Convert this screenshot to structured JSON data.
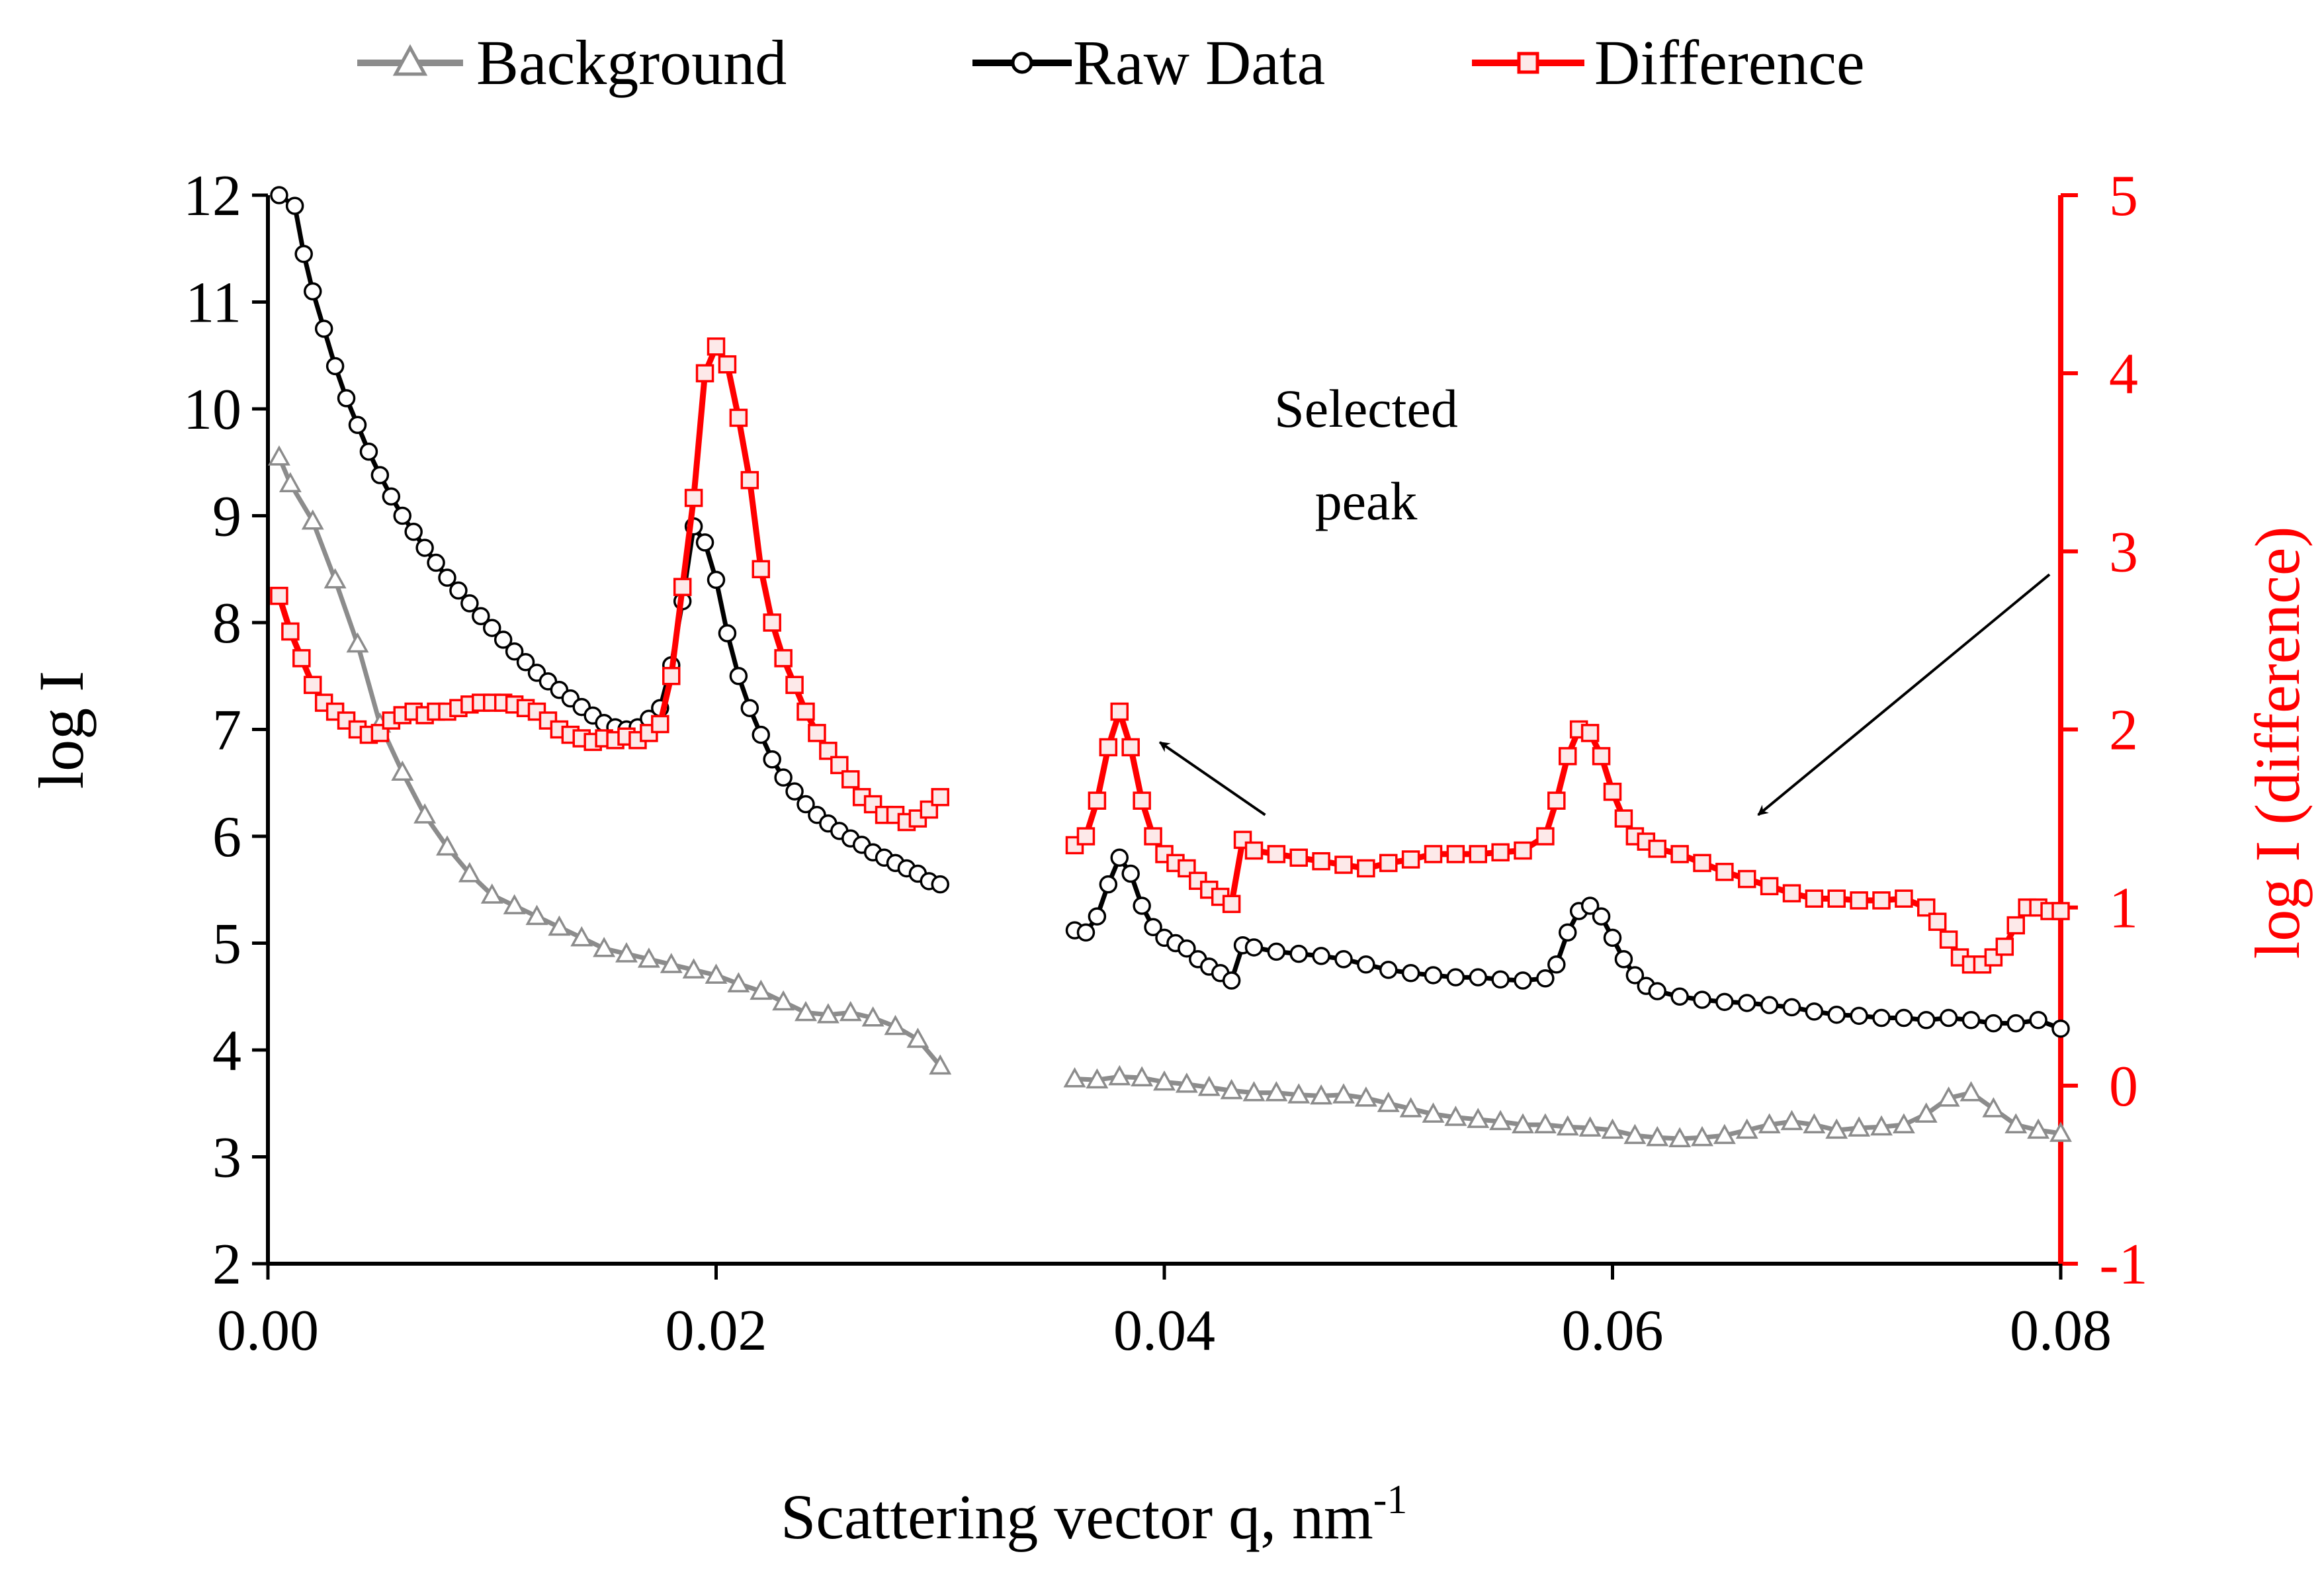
{
  "chart_data": {
    "type": "line",
    "xlabel": "Scattering vector q, nm",
    "xlabel_sup": "-1",
    "ylabel_left": "log I",
    "ylabel_right": "log I (difference)",
    "xlim": [
      0,
      0.08
    ],
    "ylim_left": [
      2,
      12
    ],
    "ylim_right": [
      -1,
      5
    ],
    "x_ticks": [
      0,
      0.02,
      0.04,
      0.06,
      0.08
    ],
    "x_tick_labels": [
      "0.00",
      "0.02",
      "0.04",
      "0.06",
      "0.08"
    ],
    "y_left_ticks": [
      2,
      3,
      4,
      5,
      6,
      7,
      8,
      9,
      10,
      11,
      12
    ],
    "y_left_tick_labels": [
      "2",
      "3",
      "4",
      "5",
      "6",
      "7",
      "8",
      "9",
      "10",
      "11",
      "12"
    ],
    "y_right_ticks": [
      -1,
      0,
      1,
      2,
      3,
      4,
      5
    ],
    "y_right_tick_labels": [
      "-1",
      "0",
      "1",
      "2",
      "3",
      "4",
      "5"
    ],
    "grid": false,
    "legend_position": "top",
    "legend": [
      "Background",
      "Raw Data",
      "Difference"
    ],
    "colors": {
      "background": "#8c8c8c",
      "raw": "#000000",
      "difference": "#ff0000",
      "difference_marker_fill": "#fde9e9",
      "right_axis": "#ff0000"
    },
    "annotation": {
      "lines": [
        "Selected",
        "peak"
      ],
      "arrows": [
        {
          "from": [
            0.0445,
            6.2
          ],
          "to": [
            0.0398,
            6.88
          ]
        },
        {
          "from": [
            0.0795,
            8.45
          ],
          "to": [
            0.0665,
            6.2
          ]
        }
      ]
    },
    "series": [
      {
        "name": "Background",
        "axis": "left",
        "marker": "triangle",
        "segments": [
          {
            "x": [
              0.0005,
              0.001,
              0.002,
              0.003,
              0.004,
              0.005,
              0.006,
              0.007,
              0.008,
              0.009,
              0.01,
              0.011,
              0.012,
              0.013,
              0.014,
              0.015,
              0.016,
              0.017,
              0.018,
              0.019,
              0.02,
              0.021,
              0.022,
              0.023,
              0.024,
              0.025,
              0.026,
              0.027,
              0.028,
              0.029,
              0.03
            ],
            "y": [
              9.55,
              9.3,
              8.95,
              8.4,
              7.8,
              7.05,
              6.6,
              6.2,
              5.9,
              5.65,
              5.45,
              5.35,
              5.25,
              5.15,
              5.05,
              4.95,
              4.9,
              4.85,
              4.8,
              4.75,
              4.7,
              4.62,
              4.55,
              4.45,
              4.35,
              4.33,
              4.35,
              4.3,
              4.22,
              4.1,
              3.85
            ]
          },
          {
            "x": [
              0.036,
              0.037,
              0.038,
              0.039,
              0.04,
              0.041,
              0.042,
              0.043,
              0.044,
              0.045,
              0.046,
              0.047,
              0.048,
              0.049,
              0.05,
              0.051,
              0.052,
              0.053,
              0.054,
              0.055,
              0.056,
              0.057,
              0.058,
              0.059,
              0.06,
              0.061,
              0.062,
              0.063,
              0.064,
              0.065,
              0.066,
              0.067,
              0.068,
              0.069,
              0.07,
              0.071,
              0.072,
              0.073,
              0.074,
              0.075,
              0.076,
              0.077,
              0.078,
              0.079,
              0.08
            ],
            "y": [
              3.73,
              3.72,
              3.75,
              3.74,
              3.7,
              3.68,
              3.65,
              3.62,
              3.6,
              3.6,
              3.58,
              3.57,
              3.58,
              3.55,
              3.5,
              3.45,
              3.4,
              3.37,
              3.35,
              3.33,
              3.3,
              3.3,
              3.28,
              3.27,
              3.25,
              3.2,
              3.18,
              3.17,
              3.18,
              3.2,
              3.25,
              3.3,
              3.33,
              3.3,
              3.25,
              3.27,
              3.28,
              3.3,
              3.4,
              3.55,
              3.6,
              3.45,
              3.3,
              3.25,
              3.22
            ]
          }
        ]
      },
      {
        "name": "Raw Data",
        "axis": "left",
        "marker": "circle",
        "segments": [
          {
            "x": [
              0.0005,
              0.0012,
              0.0016,
              0.002,
              0.0025,
              0.003,
              0.0035,
              0.004,
              0.0045,
              0.005,
              0.0055,
              0.006,
              0.0065,
              0.007,
              0.0075,
              0.008,
              0.0085,
              0.009,
              0.0095,
              0.01,
              0.0105,
              0.011,
              0.0115,
              0.012,
              0.0125,
              0.013,
              0.0135,
              0.014,
              0.0145,
              0.015,
              0.0155,
              0.016,
              0.0165,
              0.017,
              0.0175,
              0.018,
              0.0185,
              0.019,
              0.0195,
              0.02,
              0.0205,
              0.021,
              0.0215,
              0.022,
              0.0225,
              0.023,
              0.0235,
              0.024,
              0.0245,
              0.025,
              0.0255,
              0.026,
              0.0265,
              0.027,
              0.0275,
              0.028,
              0.0285,
              0.029,
              0.0295,
              0.03
            ],
            "y": [
              12.0,
              11.9,
              11.45,
              11.1,
              10.75,
              10.4,
              10.1,
              9.85,
              9.6,
              9.38,
              9.18,
              9.0,
              8.85,
              8.7,
              8.56,
              8.42,
              8.3,
              8.18,
              8.06,
              7.95,
              7.84,
              7.73,
              7.63,
              7.53,
              7.45,
              7.37,
              7.29,
              7.21,
              7.13,
              7.06,
              7.02,
              7.0,
              7.02,
              7.1,
              7.2,
              7.6,
              8.2,
              8.9,
              8.75,
              8.4,
              7.9,
              7.5,
              7.2,
              6.95,
              6.72,
              6.55,
              6.42,
              6.3,
              6.2,
              6.12,
              6.05,
              5.98,
              5.92,
              5.85,
              5.8,
              5.75,
              5.7,
              5.65,
              5.58,
              5.55
            ]
          },
          {
            "x": [
              0.036,
              0.0365,
              0.037,
              0.0375,
              0.038,
              0.0385,
              0.039,
              0.0395,
              0.04,
              0.0405,
              0.041,
              0.0415,
              0.042,
              0.0425,
              0.043,
              0.0435,
              0.044,
              0.045,
              0.046,
              0.047,
              0.048,
              0.049,
              0.05,
              0.051,
              0.052,
              0.053,
              0.054,
              0.055,
              0.056,
              0.057,
              0.0575,
              0.058,
              0.0585,
              0.059,
              0.0595,
              0.06,
              0.0605,
              0.061,
              0.0615,
              0.062,
              0.063,
              0.064,
              0.065,
              0.066,
              0.067,
              0.068,
              0.069,
              0.07,
              0.071,
              0.072,
              0.073,
              0.074,
              0.075,
              0.076,
              0.077,
              0.078,
              0.079,
              0.08
            ],
            "y": [
              5.12,
              5.1,
              5.25,
              5.55,
              5.8,
              5.65,
              5.35,
              5.15,
              5.05,
              5.0,
              4.95,
              4.85,
              4.78,
              4.72,
              4.65,
              4.98,
              4.96,
              4.92,
              4.9,
              4.88,
              4.85,
              4.8,
              4.75,
              4.72,
              4.7,
              4.68,
              4.68,
              4.66,
              4.65,
              4.67,
              4.8,
              5.1,
              5.3,
              5.35,
              5.25,
              5.05,
              4.85,
              4.7,
              4.6,
              4.55,
              4.5,
              4.47,
              4.45,
              4.44,
              4.42,
              4.4,
              4.36,
              4.33,
              4.32,
              4.3,
              4.3,
              4.28,
              4.3,
              4.28,
              4.25,
              4.25,
              4.28,
              4.2
            ]
          }
        ]
      },
      {
        "name": "Difference",
        "axis": "right",
        "marker": "square",
        "segments": [
          {
            "x": [
              0.0005,
              0.001,
              0.0015,
              0.002,
              0.0025,
              0.003,
              0.0035,
              0.004,
              0.0045,
              0.005,
              0.0055,
              0.006,
              0.0065,
              0.007,
              0.0075,
              0.008,
              0.0085,
              0.009,
              0.0095,
              0.01,
              0.0105,
              0.011,
              0.0115,
              0.012,
              0.0125,
              0.013,
              0.0135,
              0.014,
              0.0145,
              0.015,
              0.0155,
              0.016,
              0.0165,
              0.017,
              0.0175,
              0.018,
              0.0185,
              0.019,
              0.0195,
              0.02,
              0.0205,
              0.021,
              0.0215,
              0.022,
              0.0225,
              0.023,
              0.0235,
              0.024,
              0.0245,
              0.025,
              0.0255,
              0.026,
              0.0265,
              0.027,
              0.0275,
              0.028,
              0.0285,
              0.029,
              0.0295,
              0.03
            ],
            "y": [
              2.75,
              2.55,
              2.4,
              2.25,
              2.15,
              2.1,
              2.05,
              2.0,
              1.97,
              1.98,
              2.05,
              2.08,
              2.1,
              2.08,
              2.1,
              2.1,
              2.12,
              2.14,
              2.15,
              2.15,
              2.15,
              2.14,
              2.12,
              2.1,
              2.05,
              2.0,
              1.97,
              1.95,
              1.93,
              1.95,
              1.94,
              1.96,
              1.94,
              1.98,
              2.03,
              2.3,
              2.8,
              3.3,
              4.0,
              4.15,
              4.05,
              3.75,
              3.4,
              2.9,
              2.6,
              2.4,
              2.25,
              2.1,
              1.98,
              1.88,
              1.8,
              1.72,
              1.62,
              1.58,
              1.52,
              1.52,
              1.48,
              1.5,
              1.55,
              1.62
            ]
          },
          {
            "x": [
              0.036,
              0.0365,
              0.037,
              0.0375,
              0.038,
              0.0385,
              0.039,
              0.0395,
              0.04,
              0.0405,
              0.041,
              0.0415,
              0.042,
              0.0425,
              0.043,
              0.0435,
              0.044,
              0.045,
              0.046,
              0.047,
              0.048,
              0.049,
              0.05,
              0.051,
              0.052,
              0.053,
              0.054,
              0.055,
              0.056,
              0.057,
              0.0575,
              0.058,
              0.0585,
              0.059,
              0.0595,
              0.06,
              0.0605,
              0.061,
              0.0615,
              0.062,
              0.063,
              0.064,
              0.065,
              0.066,
              0.067,
              0.068,
              0.069,
              0.07,
              0.071,
              0.072,
              0.073,
              0.074,
              0.0745,
              0.075,
              0.0755,
              0.076,
              0.0765,
              0.077,
              0.0775,
              0.078,
              0.0785,
              0.079,
              0.0795,
              0.08
            ],
            "y": [
              1.35,
              1.4,
              1.6,
              1.9,
              2.1,
              1.9,
              1.6,
              1.4,
              1.3,
              1.25,
              1.22,
              1.15,
              1.1,
              1.06,
              1.02,
              1.38,
              1.32,
              1.3,
              1.28,
              1.26,
              1.24,
              1.22,
              1.25,
              1.27,
              1.3,
              1.3,
              1.3,
              1.31,
              1.32,
              1.4,
              1.6,
              1.85,
              2.0,
              1.98,
              1.85,
              1.65,
              1.5,
              1.4,
              1.37,
              1.33,
              1.3,
              1.25,
              1.2,
              1.16,
              1.12,
              1.08,
              1.05,
              1.05,
              1.04,
              1.04,
              1.05,
              1.0,
              0.92,
              0.82,
              0.72,
              0.68,
              0.68,
              0.72,
              0.78,
              0.9,
              1.0,
              1.0,
              0.98,
              0.98
            ]
          }
        ]
      }
    ]
  }
}
